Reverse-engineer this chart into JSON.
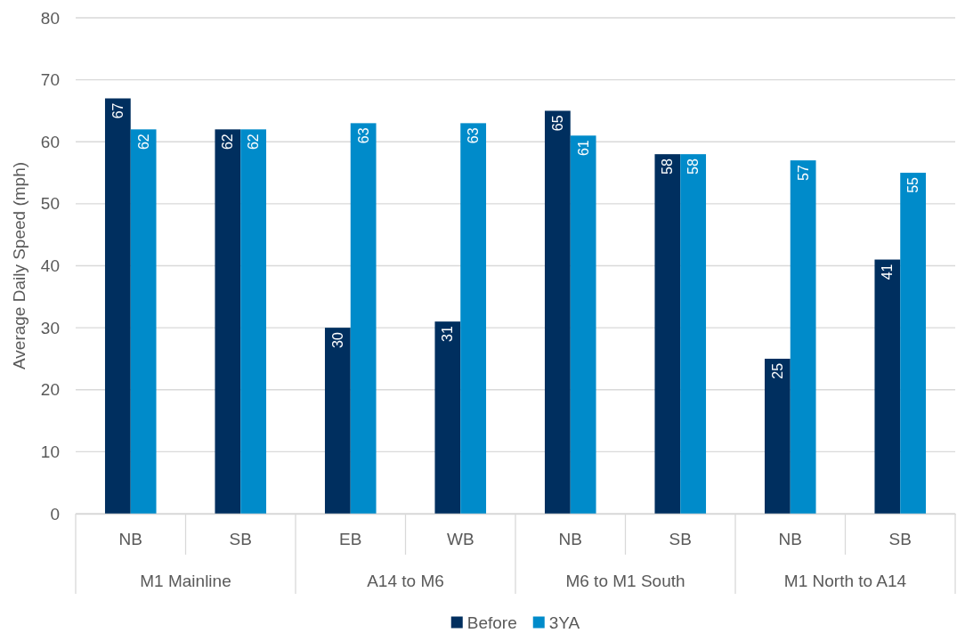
{
  "chart_data": {
    "type": "bar",
    "categories": [
      "NB",
      "SB",
      "EB",
      "WB",
      "NB",
      "SB",
      "NB",
      "SB"
    ],
    "series": [
      {
        "name": "Before",
        "color": "#002f5f",
        "values": [
          67,
          62,
          30,
          31,
          65,
          58,
          25,
          41
        ]
      },
      {
        "name": "3YA",
        "color": "#008bca",
        "values": [
          62,
          62,
          63,
          63,
          61,
          58,
          57,
          55
        ]
      }
    ],
    "ylabel": "Average Daily Speed (mph)",
    "annotations": [
      "M1 Mainline",
      "A14 to M6",
      "M6 to M1 South",
      "M1 North to A14"
    ],
    "ylim": [
      0,
      80
    ],
    "yticks": [
      0,
      10,
      20,
      30,
      40,
      50,
      60,
      70,
      80
    ],
    "grid": "y",
    "legend": "bottom",
    "data_labels": true
  }
}
